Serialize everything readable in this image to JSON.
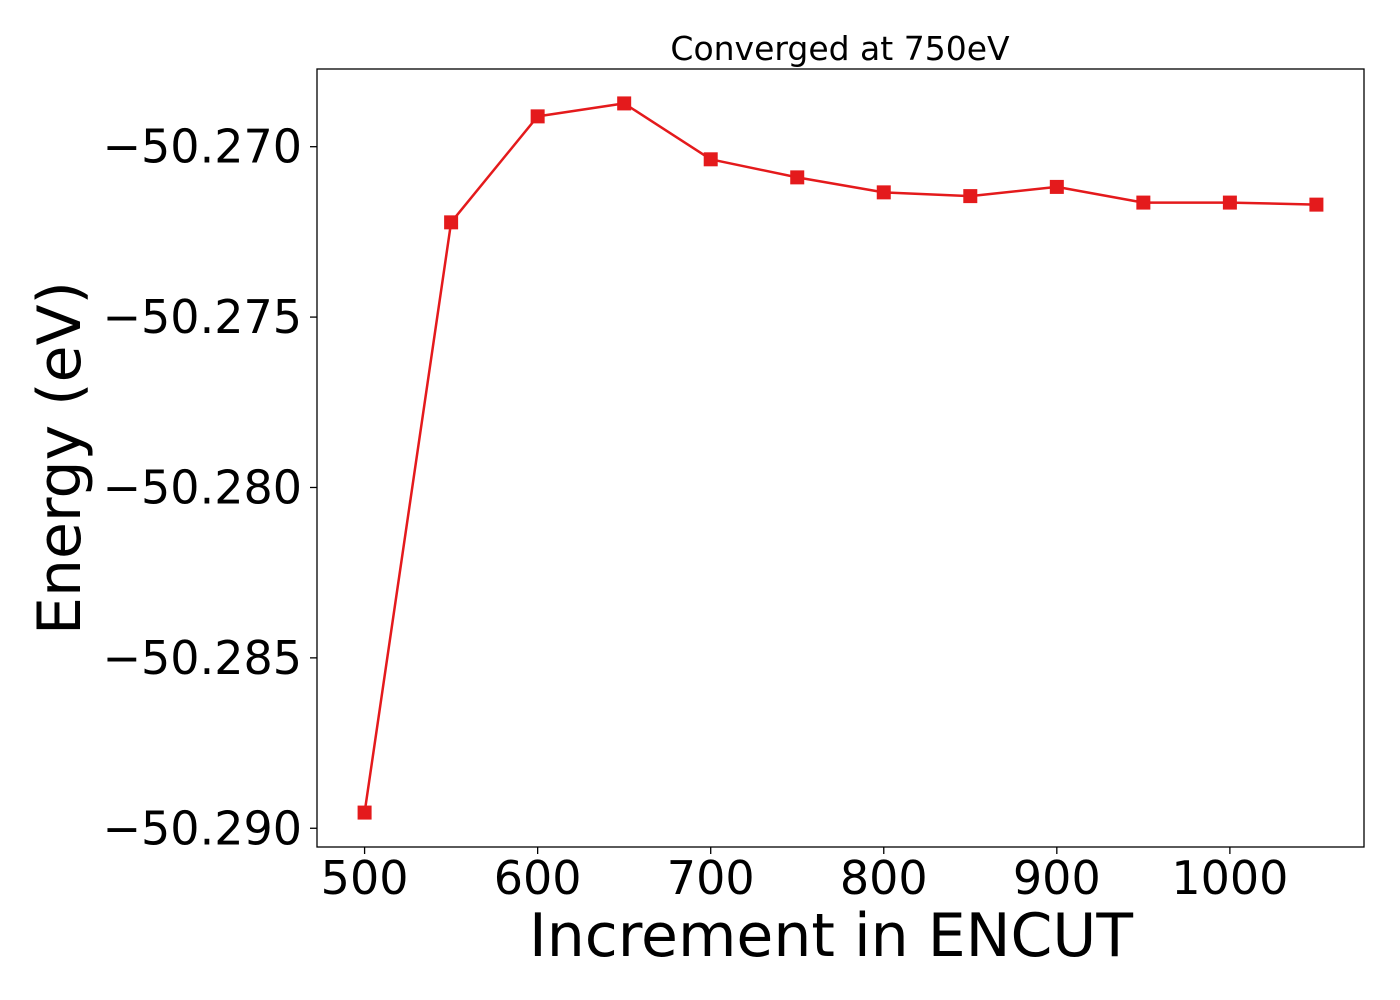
{
  "chart_data": {
    "type": "line",
    "title": "Converged at 750eV",
    "xlabel": "Increment in ENCUT",
    "ylabel": "Energy (eV)",
    "x": [
      500,
      550,
      600,
      650,
      700,
      750,
      800,
      850,
      900,
      950,
      1000,
      1050
    ],
    "series": [
      {
        "values": [
          -50.28954,
          -50.27222,
          -50.26911,
          -50.26873,
          -50.27037,
          -50.2709,
          -50.27134,
          -50.27145,
          -50.27118,
          -50.27164,
          -50.27164,
          -50.2717
        ],
        "color": "#e41a1c",
        "marker": "square"
      }
    ],
    "xlim": [
      472.5,
      1077.5
    ],
    "ylim": [
      -50.29055,
      -50.26772
    ],
    "xticks": [
      500,
      600,
      700,
      800,
      900,
      1000
    ],
    "xtick_labels": [
      "500",
      "600",
      "700",
      "800",
      "900",
      "1000"
    ],
    "yticks": [
      -50.29,
      -50.285,
      -50.28,
      -50.275,
      -50.27
    ],
    "ytick_labels": [
      "−50.290",
      "−50.285",
      "−50.280",
      "−50.275",
      "−50.270"
    ],
    "grid": false,
    "legend": "none"
  }
}
